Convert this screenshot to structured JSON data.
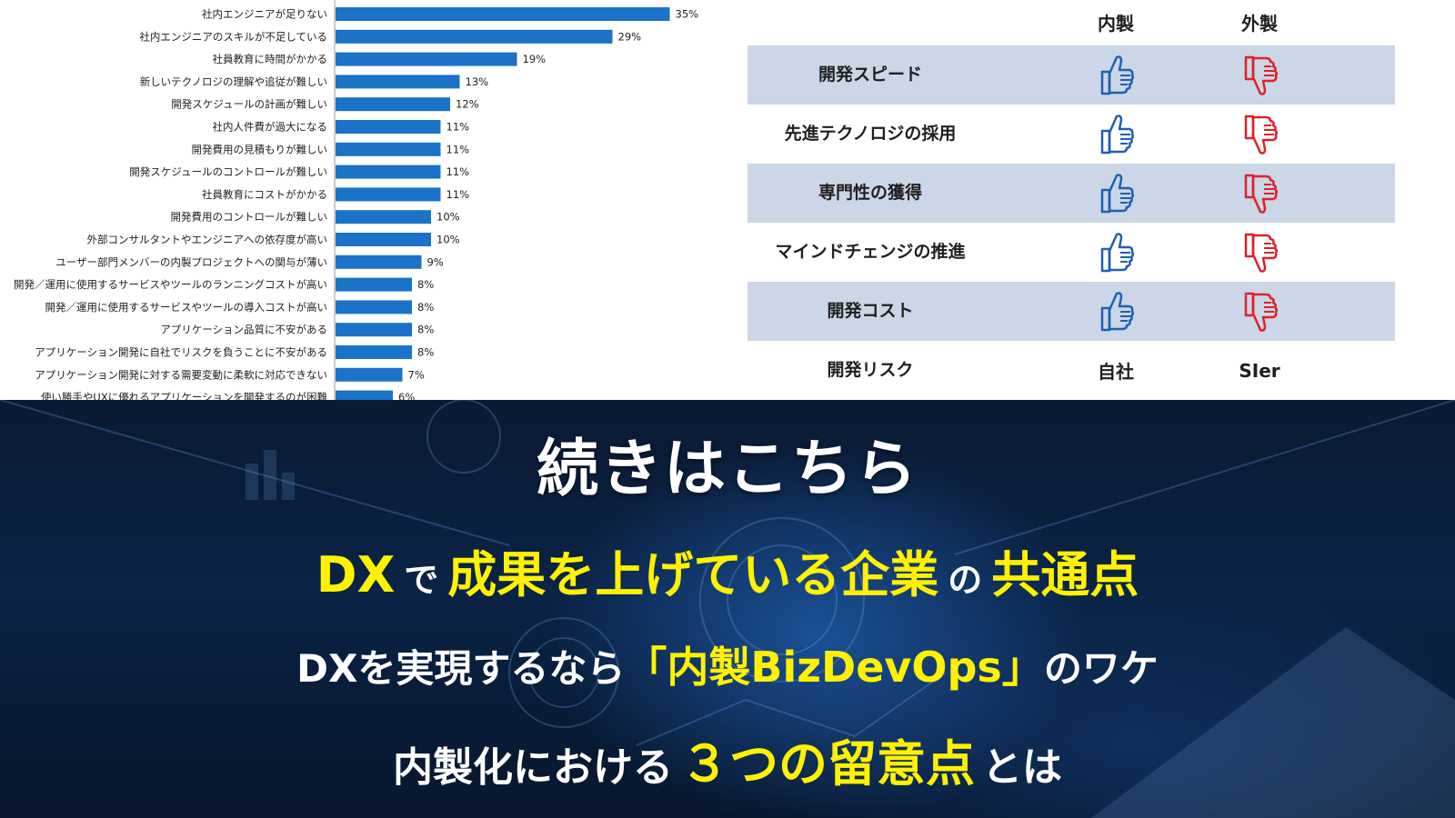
{
  "chart_data": {
    "type": "bar",
    "orientation": "horizontal",
    "categories": [
      "社内エンジニアが足りない",
      "社内エンジニアのスキルが不足している",
      "社員教育に時間がかかる",
      "新しいテクノロジの理解や追従が難しい",
      "開発スケジュールの計画が難しい",
      "社内人件費が過大になる",
      "開発費用の見積もりが難しい",
      "開発スケジュールのコントロールが難しい",
      "社員教育にコストがかかる",
      "開発費用のコントロールが難しい",
      "外部コンサルタントやエンジニアへの依存度が高い",
      "ユーザー部門メンバーの内製プロジェクトへの関与が薄い",
      "開発／運用に使用するサービスやツールのランニングコストが高い",
      "開発／運用に使用するサービスやツールの導入コストが高い",
      "アプリケーション品質に不安がある",
      "アプリケーション開発に自社でリスクを負うことに不安がある",
      "アプリケーション開発に対する需要変動に柔軟に対応できない",
      "使い勝手やUXに優れるアプリケーションを開発するのが困難"
    ],
    "values": [
      35,
      29,
      19,
      13,
      12,
      11,
      11,
      11,
      11,
      10,
      10,
      9,
      8,
      8,
      8,
      8,
      7,
      6
    ],
    "value_labels": [
      "35%",
      "29%",
      "19%",
      "13%",
      "12%",
      "11%",
      "11%",
      "11%",
      "11%",
      "10%",
      "10%",
      "9%",
      "8%",
      "8%",
      "8%",
      "8%",
      "7%",
      "6%"
    ],
    "bar_color": "#1a73c6",
    "grid": false
  },
  "comparison": {
    "columns": [
      "内製",
      "外製"
    ],
    "rows": [
      {
        "label": "開発スピード",
        "inhouse": "thumbs-up-icon",
        "outsource": "thumbs-down-icon"
      },
      {
        "label": "先進テクノロジの採用",
        "inhouse": "thumbs-up-icon",
        "outsource": "thumbs-down-icon"
      },
      {
        "label": "専門性の獲得",
        "inhouse": "thumbs-up-icon",
        "outsource": "thumbs-down-icon"
      },
      {
        "label": "マインドチェンジの推進",
        "inhouse": "thumbs-up-icon",
        "outsource": "thumbs-down-icon"
      },
      {
        "label": "開発コスト",
        "inhouse": "thumbs-up-icon",
        "outsource": "thumbs-down-icon"
      },
      {
        "label": "開発リスク",
        "inhouse_text": "自社",
        "outsource_text": "SIer"
      }
    ],
    "colors": {
      "row_shade": "#cbd6e6",
      "up": "#1f5fb5",
      "down": "#e0202a"
    }
  },
  "banner": {
    "title": "続きはこちら",
    "line1": {
      "a": "DX",
      "b": "で",
      "c": "成果を上げている企業",
      "d": "の",
      "e": "共通点"
    },
    "line2": {
      "a": "DXを実現するなら",
      "b": "「内製BizDevOps」",
      "c": "のワケ"
    },
    "line3": {
      "a": "内製化における",
      "b": "３つの留意点",
      "c": "とは"
    },
    "colors": {
      "accent": "#fff100",
      "text": "#ffffff"
    }
  }
}
